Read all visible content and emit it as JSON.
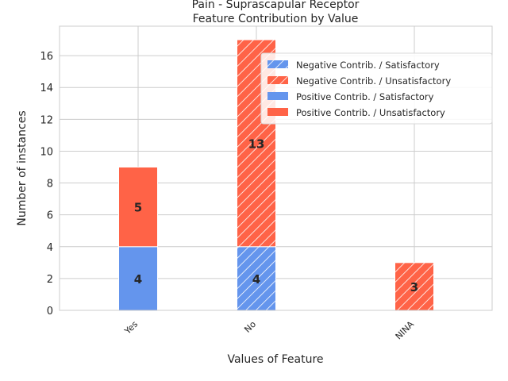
{
  "chart_data": {
    "type": "bar",
    "title_line1": "Pain - Suprascapular Receptor",
    "title_line2": "Feature Contribution by Value",
    "xlabel": "Values of Feature",
    "ylabel": "Number of instances",
    "categories": [
      "Yes",
      "No",
      "NINA"
    ],
    "ylim": [
      0,
      17.85
    ],
    "yticks": [
      0,
      2,
      4,
      6,
      8,
      10,
      12,
      14,
      16
    ],
    "grid": true,
    "legend_position": "top-right",
    "colors": {
      "satisfactory": "#6495ED",
      "unsatisfactory": "#FF6347"
    },
    "groups": [
      {
        "name": "Negative Contrib.",
        "hatched": true,
        "series": [
          {
            "name": "Satisfactory",
            "values": [
              0,
              4,
              0
            ]
          },
          {
            "name": "Unsatisfactory",
            "values": [
              0,
              13,
              3
            ]
          }
        ]
      },
      {
        "name": "Positive Contrib.",
        "hatched": false,
        "series": [
          {
            "name": "Satisfactory",
            "values": [
              4,
              0,
              0
            ]
          },
          {
            "name": "Unsatisfactory",
            "values": [
              5,
              0,
              0
            ]
          }
        ]
      }
    ],
    "legend": [
      "Negative Contrib. / Satisfactory",
      "Negative Contrib. / Unsatisfactory",
      "Positive Contrib. / Satisfactory",
      "Positive Contrib. / Unsatisfactory"
    ]
  }
}
